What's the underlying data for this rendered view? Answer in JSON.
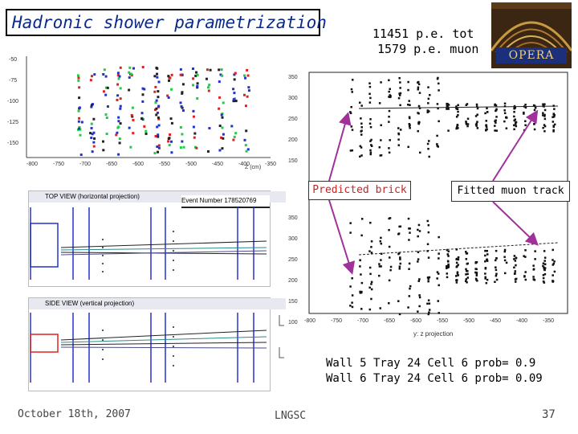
{
  "slide": {
    "title": "Hadronic shower parametrization",
    "pe_total": "11451 p.e. tot",
    "pe_muon": "1579 p.e. muon",
    "logo_text": "OPERA",
    "predicted_label": "Predicted brick",
    "fitted_label": "Fitted muon track",
    "prob_line1": "Wall 5 Tray 24 Cell 6 prob= 0.9",
    "prob_line2": "Wall 6 Tray 24 Cell 6 prob= 0.09",
    "date": "October 18th, 2007",
    "venue": "LNGSC",
    "page": "37"
  },
  "top_view": {
    "header": "TOP VIEW (horizontal projection)",
    "event": "Event Number 178520769"
  },
  "side_view": {
    "header": "SIDE VIEW (vertical projection)"
  },
  "right_plot": {
    "xlabel": "y: z projection",
    "yticks_top": [
      "350",
      "300",
      "250",
      "200",
      "150"
    ],
    "yticks_bottom": [
      "350",
      "300",
      "250",
      "200",
      "150",
      "100"
    ],
    "xticks": [
      "-800",
      "-750",
      "-700",
      "-650",
      "-600",
      "-550",
      "-500",
      "-450",
      "-400",
      "-350"
    ]
  },
  "left_plot": {
    "xlabel": "Z (cm)",
    "xticks": [
      "-800",
      "-750",
      "-700",
      "-650",
      "-600",
      "-550",
      "-500",
      "-450",
      "-400",
      "-350"
    ]
  },
  "colors": {
    "title_text": "#0a2a8a",
    "arrow": "#a0309a",
    "blue": "#2233cc",
    "red": "#dd2222",
    "green": "#22cc44"
  }
}
